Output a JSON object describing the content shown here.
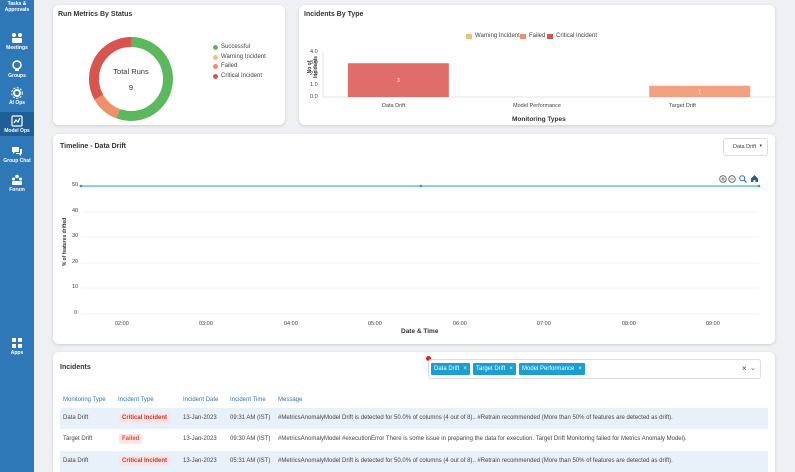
{
  "sidebar": {
    "items": [
      {
        "label": "Tasks & Approvals",
        "icon": "tasks-icon"
      },
      {
        "label": "Meetings",
        "icon": "meetings-icon"
      },
      {
        "label": "Groups",
        "icon": "groups-icon"
      },
      {
        "label": "AI Ops",
        "icon": "ai-ops-icon"
      },
      {
        "label": "Model Ops",
        "icon": "model-ops-icon"
      },
      {
        "label": "Group Chat",
        "icon": "group-chat-icon"
      },
      {
        "label": "Forum",
        "icon": "forum-icon"
      },
      {
        "label": "Apps",
        "icon": "apps-icon"
      }
    ]
  },
  "run_metrics": {
    "title": "Run Metrics By Status",
    "center_label": "Total Runs",
    "center_value": "9",
    "legend": [
      "Successful",
      "Warning Incident",
      "Failed",
      "Critical Incident"
    ],
    "colors": {
      "successful": "#5cb85c",
      "warning": "#f0c27b",
      "failed": "#f0906b",
      "critical": "#d9534f"
    }
  },
  "incidents_by_type": {
    "title": "Incidents By Type",
    "legend": [
      "Warning Incident",
      "Failed",
      "Critical Incident"
    ],
    "ylabel": "No of Incidents",
    "xlabel": "Monitoring Types",
    "yticks": [
      "4.0",
      "3.0",
      "2.0",
      "1.0",
      "0.0"
    ],
    "bar_labels": [
      "3",
      "1"
    ]
  },
  "timeline": {
    "title": "Timeline - Data Drift",
    "dropdown_value": "Data Drift",
    "ylabel": "% of features drifted",
    "xlabel": "Date & Time",
    "yticks": [
      "50",
      "40",
      "30",
      "20",
      "10",
      "0"
    ],
    "xticks": [
      "02:00",
      "03:00",
      "04:00",
      "05:00",
      "06:00",
      "07:00",
      "08:00",
      "09:00"
    ]
  },
  "incidents": {
    "title": "Incidents",
    "tags": [
      "Data Drift",
      "Target Drift",
      "Model Performance"
    ],
    "columns": [
      "Monitoring Type",
      "Incident Type",
      "Incident Date",
      "Incident Time",
      "Message"
    ],
    "rows": [
      {
        "type": "Data Drift",
        "incident": "Critical Incident",
        "date": "13-Jan-2023",
        "time": "09:31 AM (IST)",
        "message": "#MetricsAnomalyModel Drift is detected for 50.0% of columns (4 out of 8).. #Retrain recommended (More than 50% of features are detected as drift)."
      },
      {
        "type": "Target Drift",
        "incident": "Failed",
        "date": "13-Jan-2023",
        "time": "09:30 AM (IST)",
        "message": "#MetricsAnomalyModel #executionError There is some issue in preparing the data for execution. Target Drift Monitoring failed for Metrics Anomaly Model)."
      },
      {
        "type": "Data Drift",
        "incident": "Critical Incident",
        "date": "13-Jan-2023",
        "time": "05:31 AM (IST)",
        "message": "#MetricsAnomalyModel Drift is detected for 50.0% of columns (4 out of 8).. #Retrain recommended (More than 50% of features are detected as drift)."
      }
    ]
  },
  "chart_data": [
    {
      "type": "pie",
      "title": "Run Metrics By Status",
      "categories": [
        "Successful",
        "Warning Incident",
        "Failed",
        "Critical Incident"
      ],
      "values": [
        5,
        0,
        1,
        3
      ]
    },
    {
      "type": "bar",
      "title": "Incidents By Type",
      "categories": [
        "Data Drift",
        "Model Performance",
        "Target Drift"
      ],
      "series": [
        {
          "name": "Warning Incident",
          "values": [
            0,
            0,
            0
          ]
        },
        {
          "name": "Failed",
          "values": [
            0,
            0,
            1
          ]
        },
        {
          "name": "Critical Incident",
          "values": [
            3,
            0,
            0
          ]
        }
      ],
      "xlabel": "Monitoring Types",
      "ylabel": "No of Incidents",
      "ylim": [
        0,
        4
      ]
    },
    {
      "type": "line",
      "title": "Timeline - Data Drift",
      "x": [
        "01:30",
        "05:31",
        "09:31"
      ],
      "series": [
        {
          "values": [
            50,
            50,
            50
          ]
        }
      ],
      "xlabel": "Date & Time",
      "ylabel": "% of features drifted",
      "ylim": [
        0,
        50
      ]
    }
  ]
}
